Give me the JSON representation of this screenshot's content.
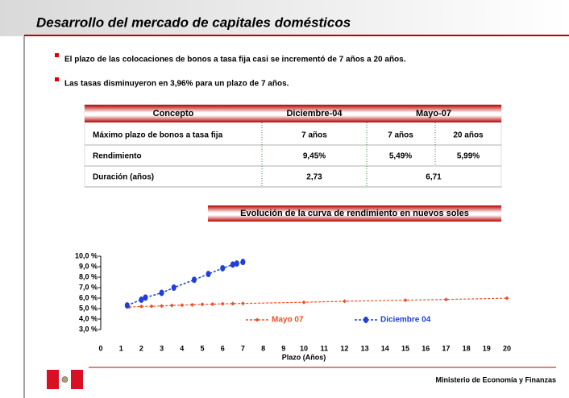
{
  "header": {
    "title": "Desarrollo del mercado de capitales domésticos"
  },
  "bullets": [
    "El plazo de las colocaciones de bonos a tasa fija casi se incrementó de 7 años a 20 años.",
    "Las tasas disminuyeron en  3,96% para un plazo de 7 años."
  ],
  "table": {
    "header": [
      "Concepto",
      "Diciembre-04",
      "Mayo-07"
    ],
    "rows": [
      [
        "Máximo plazo de bonos a tasa fija",
        "7 años",
        "7 años",
        "20 años"
      ],
      [
        "Rendimiento",
        "9,45%",
        "5,49%",
        "5,99%"
      ],
      [
        "Duración (años)",
        "2,73",
        "6,71"
      ]
    ]
  },
  "chart_data": {
    "type": "line",
    "title": "Evolución de la curva de rendimiento en nuevos soles",
    "x_label": "Plazo (Años)",
    "xlim": [
      0,
      20
    ],
    "xticks": [
      0,
      1,
      2,
      3,
      4,
      5,
      6,
      7,
      8,
      9,
      10,
      11,
      12,
      13,
      14,
      15,
      16,
      17,
      18,
      19,
      20
    ],
    "ylim": [
      3,
      10
    ],
    "yticks": [
      {
        "value": 3,
        "label": "3,0 %"
      },
      {
        "value": 4,
        "label": "4,0 %"
      },
      {
        "value": 5,
        "label": "5,0 %"
      },
      {
        "value": 6,
        "label": "6,0 %"
      },
      {
        "value": 7,
        "label": "7,0 %"
      },
      {
        "value": 8,
        "label": "8,0 %"
      },
      {
        "value": 9,
        "label": "9,0 %"
      },
      {
        "value": 10,
        "label": "10,0 %"
      }
    ],
    "series": [
      {
        "name": "Mayo 07",
        "color": "#f04e23",
        "x": [
          1.4,
          2,
          2.5,
          3,
          3.5,
          4,
          4.5,
          5,
          5.5,
          6,
          6.5,
          7,
          10,
          12,
          15,
          17,
          20
        ],
        "values": [
          5.15,
          5.2,
          5.22,
          5.25,
          5.3,
          5.33,
          5.36,
          5.4,
          5.42,
          5.45,
          5.47,
          5.49,
          5.6,
          5.7,
          5.8,
          5.87,
          5.99
        ]
      },
      {
        "name": "Diciembre 04",
        "color": "#1f3fd8",
        "x": [
          1.3,
          2,
          2.2,
          3,
          3.6,
          4.6,
          5.3,
          6,
          6.5,
          6.7,
          7
        ],
        "values": [
          5.3,
          5.85,
          6.05,
          6.5,
          7.0,
          7.75,
          8.3,
          8.85,
          9.2,
          9.3,
          9.45
        ]
      }
    ]
  },
  "footer": "Ministerio de Economía y Finanzas"
}
